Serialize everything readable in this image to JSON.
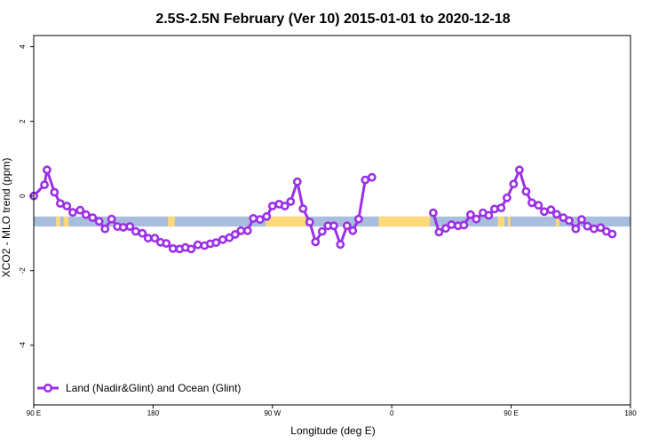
{
  "chart_data": {
    "type": "line",
    "title": "2.5S-2.5N February (Ver 10)   2015-01-01 to 2020-12-18",
    "xlabel": "Longitude (deg E)",
    "ylabel": "XCO2 - MLO trend (ppm)",
    "xlim": [
      90,
      450
    ],
    "ylim": [
      -5.6,
      4.3
    ],
    "x_ticks": [
      90,
      162,
      234,
      306,
      378,
      450
    ],
    "x_tick_labels": [
      "90 E",
      "180",
      "90 W",
      "0",
      "90 E",
      "180"
    ],
    "y_ticks": [
      -4,
      -2,
      0,
      2,
      4
    ],
    "y_tick_labels": [
      "-4",
      "-2",
      "0",
      "2",
      "4"
    ],
    "grid": false,
    "legend_position": "bottom-left",
    "series": [
      {
        "name": "Land (Nadir&Glint) and Ocean (Glint)",
        "color": "#9b30e6",
        "segments": [
          [
            [
              90,
              0.0
            ],
            [
              96.5,
              0.3
            ],
            [
              98,
              0.7
            ],
            [
              102.5,
              0.1
            ],
            [
              106,
              -0.2
            ],
            [
              110,
              -0.27
            ],
            [
              113.5,
              -0.44
            ],
            [
              118,
              -0.38
            ],
            [
              121.5,
              -0.5
            ],
            [
              125.5,
              -0.58
            ],
            [
              129.5,
              -0.68
            ],
            [
              133,
              -0.88
            ],
            [
              137,
              -0.62
            ],
            [
              140.5,
              -0.82
            ],
            [
              144,
              -0.84
            ],
            [
              148,
              -0.82
            ],
            [
              151.5,
              -0.95
            ],
            [
              155.5,
              -1.0
            ],
            [
              159,
              -1.13
            ],
            [
              163,
              -1.13
            ],
            [
              166.5,
              -1.24
            ],
            [
              170,
              -1.27
            ],
            [
              174,
              -1.41
            ],
            [
              178,
              -1.42
            ],
            [
              181.5,
              -1.38
            ],
            [
              185,
              -1.42
            ],
            [
              189,
              -1.31
            ],
            [
              193,
              -1.33
            ],
            [
              196.5,
              -1.28
            ],
            [
              200,
              -1.25
            ],
            [
              204,
              -1.17
            ],
            [
              208,
              -1.12
            ],
            [
              211.5,
              -1.03
            ],
            [
              215,
              -0.93
            ],
            [
              219,
              -0.93
            ],
            [
              222.5,
              -0.6
            ],
            [
              226.5,
              -0.63
            ],
            [
              230.5,
              -0.55
            ],
            [
              234,
              -0.27
            ],
            [
              238,
              -0.22
            ],
            [
              241.5,
              -0.27
            ],
            [
              245,
              -0.15
            ],
            [
              249,
              0.38
            ],
            [
              252.5,
              -0.34
            ],
            [
              256.5,
              -0.7
            ],
            [
              260,
              -1.23
            ],
            [
              264,
              -0.95
            ],
            [
              267.5,
              -0.8
            ],
            [
              271,
              -0.8
            ],
            [
              275,
              -1.3
            ],
            [
              279,
              -0.8
            ],
            [
              282.5,
              -0.93
            ],
            [
              286,
              -0.62
            ],
            [
              290,
              0.43
            ],
            [
              294,
              0.5
            ]
          ],
          [
            [
              331,
              -0.45
            ],
            [
              334.5,
              -0.97
            ],
            [
              338.5,
              -0.87
            ],
            [
              342,
              -0.77
            ],
            [
              346,
              -0.8
            ],
            [
              349.5,
              -0.78
            ],
            [
              353.5,
              -0.5
            ],
            [
              357,
              -0.62
            ],
            [
              361,
              -0.45
            ],
            [
              364.5,
              -0.52
            ],
            [
              368,
              -0.35
            ],
            [
              372,
              -0.32
            ],
            [
              375.5,
              -0.05
            ],
            [
              379.5,
              0.32
            ],
            [
              383,
              0.7
            ],
            [
              387,
              0.12
            ],
            [
              390.5,
              -0.18
            ],
            [
              394.5,
              -0.25
            ],
            [
              398,
              -0.42
            ],
            [
              402,
              -0.37
            ],
            [
              405.5,
              -0.49
            ],
            [
              409.5,
              -0.58
            ],
            [
              413,
              -0.66
            ],
            [
              417,
              -0.88
            ],
            [
              420.5,
              -0.63
            ],
            [
              424,
              -0.81
            ],
            [
              428,
              -0.88
            ],
            [
              432,
              -0.85
            ],
            [
              435.5,
              -0.95
            ],
            [
              439,
              -1.02
            ]
          ]
        ]
      }
    ],
    "band": {
      "y_range": [
        -0.55,
        -0.82
      ],
      "base_color": "#a8bedc",
      "highlight_color": "#fdd97a",
      "highlight_x_ranges": [
        [
          103.5,
          106
        ],
        [
          108,
          111
        ],
        [
          171,
          175
        ],
        [
          230,
          254
        ],
        [
          298,
          329
        ],
        [
          370,
          374
        ],
        [
          376,
          377.5
        ],
        [
          405,
          407
        ]
      ]
    }
  }
}
